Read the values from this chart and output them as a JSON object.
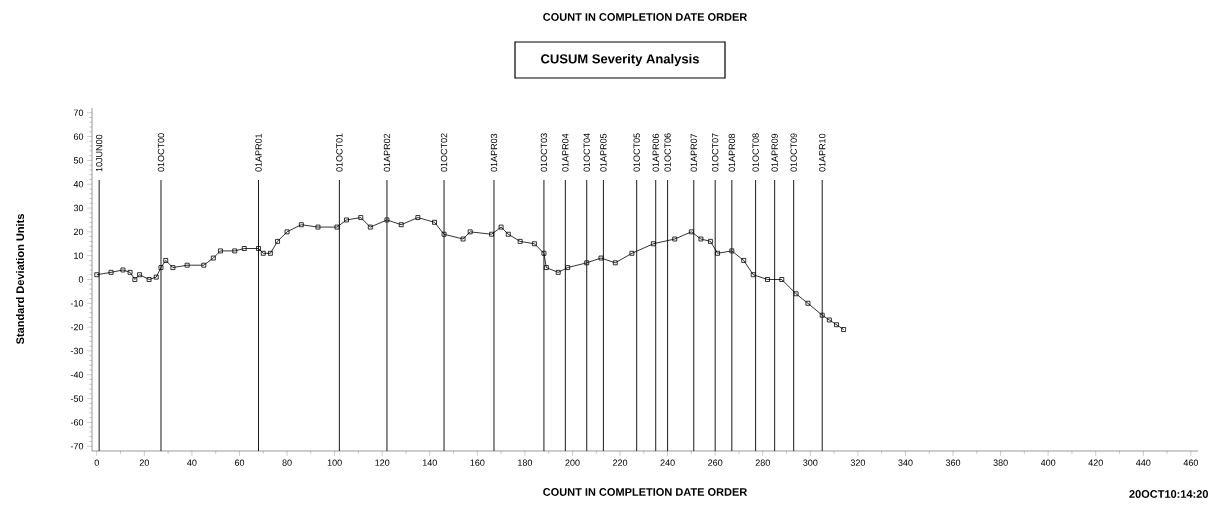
{
  "chart_data": {
    "type": "line",
    "title": "CUSUM Severity Analysis",
    "xlabel": "COUNT IN COMPLETION DATE ORDER",
    "ylabel": "Standard Deviation Units",
    "annotations": [
      "COUNT IN COMPLETION DATE ORDER",
      "20OCT10:14:20"
    ],
    "x": [
      0,
      6,
      11,
      14,
      16,
      18,
      22,
      25,
      27,
      29,
      32,
      38,
      45,
      49,
      52,
      58,
      62,
      68,
      70,
      73,
      76,
      80,
      86,
      93,
      101,
      105,
      111,
      115,
      122,
      128,
      135,
      142,
      146,
      154,
      157,
      166,
      170,
      173,
      178,
      184,
      188,
      189,
      194,
      198,
      206,
      212,
      218,
      225,
      234,
      243,
      250,
      254,
      258,
      261,
      267,
      272,
      276,
      282,
      288,
      294,
      299,
      305,
      308,
      311,
      314
    ],
    "series": [
      {
        "color": "#000000",
        "values": [
          2,
          3,
          4,
          3,
          0,
          2,
          0,
          1,
          5,
          8,
          5,
          6,
          6,
          9,
          12,
          12,
          13,
          13,
          11,
          11,
          16,
          20,
          23,
          22,
          22,
          25,
          26,
          22,
          25,
          23,
          26,
          24,
          19,
          17,
          20,
          19,
          22,
          19,
          16,
          15,
          11,
          5,
          3,
          5,
          7,
          9,
          7,
          11,
          15,
          17,
          20,
          17,
          16,
          11,
          12,
          8,
          2,
          0,
          0,
          -6,
          -10,
          -15,
          -17,
          -19,
          -21
        ]
      }
    ],
    "xlim": [
      -2,
      463
    ],
    "xticks": [
      0,
      20,
      40,
      60,
      80,
      100,
      120,
      140,
      160,
      180,
      200,
      220,
      240,
      260,
      280,
      300,
      320,
      340,
      360,
      380,
      400,
      420,
      440,
      460
    ],
    "ylim": [
      -72,
      72
    ],
    "yticks": [
      -70,
      -60,
      -50,
      -40,
      -30,
      -20,
      -10,
      0,
      10,
      20,
      30,
      40,
      50,
      60,
      70
    ],
    "marker": "square",
    "ref_lines": [
      {
        "axis": "x",
        "value": 1,
        "label": "10JUN00",
        "color": "#000000"
      },
      {
        "axis": "x",
        "value": 27,
        "label": "01OCT00",
        "color": "#000000"
      },
      {
        "axis": "x",
        "value": 68,
        "label": "01APR01",
        "color": "#000000"
      },
      {
        "axis": "x",
        "value": 102,
        "label": "01OCT01",
        "color": "#000000"
      },
      {
        "axis": "x",
        "value": 122,
        "label": "01APR02",
        "color": "#000000"
      },
      {
        "axis": "x",
        "value": 146,
        "label": "01OCT02",
        "color": "#000000"
      },
      {
        "axis": "x",
        "value": 167,
        "label": "01APR03",
        "color": "#000000"
      },
      {
        "axis": "x",
        "value": 188,
        "label": "01OCT03",
        "color": "#000000"
      },
      {
        "axis": "x",
        "value": 197,
        "label": "01APR04",
        "color": "#000000"
      },
      {
        "axis": "x",
        "value": 206,
        "label": "01OCT04",
        "color": "#000000"
      },
      {
        "axis": "x",
        "value": 213,
        "label": "01APR05",
        "color": "#000000"
      },
      {
        "axis": "x",
        "value": 227,
        "label": "01OCT05",
        "color": "#000000"
      },
      {
        "axis": "x",
        "value": 235,
        "label": "01APR06",
        "color": "#000000"
      },
      {
        "axis": "x",
        "value": 240,
        "label": "01OCT06",
        "color": "#000000"
      },
      {
        "axis": "x",
        "value": 251,
        "label": "01APR07",
        "color": "#000000"
      },
      {
        "axis": "x",
        "value": 260,
        "label": "01OCT07",
        "color": "#000000"
      },
      {
        "axis": "x",
        "value": 267,
        "label": "01APR08",
        "color": "#000000"
      },
      {
        "axis": "x",
        "value": 277,
        "label": "01OCT08",
        "color": "#000000"
      },
      {
        "axis": "x",
        "value": 285,
        "label": "01APR09",
        "color": "#000000"
      },
      {
        "axis": "x",
        "value": 293,
        "label": "01OCT09",
        "color": "#000000"
      },
      {
        "axis": "x",
        "value": 305,
        "label": "01APR10",
        "color": "#000000"
      }
    ]
  }
}
